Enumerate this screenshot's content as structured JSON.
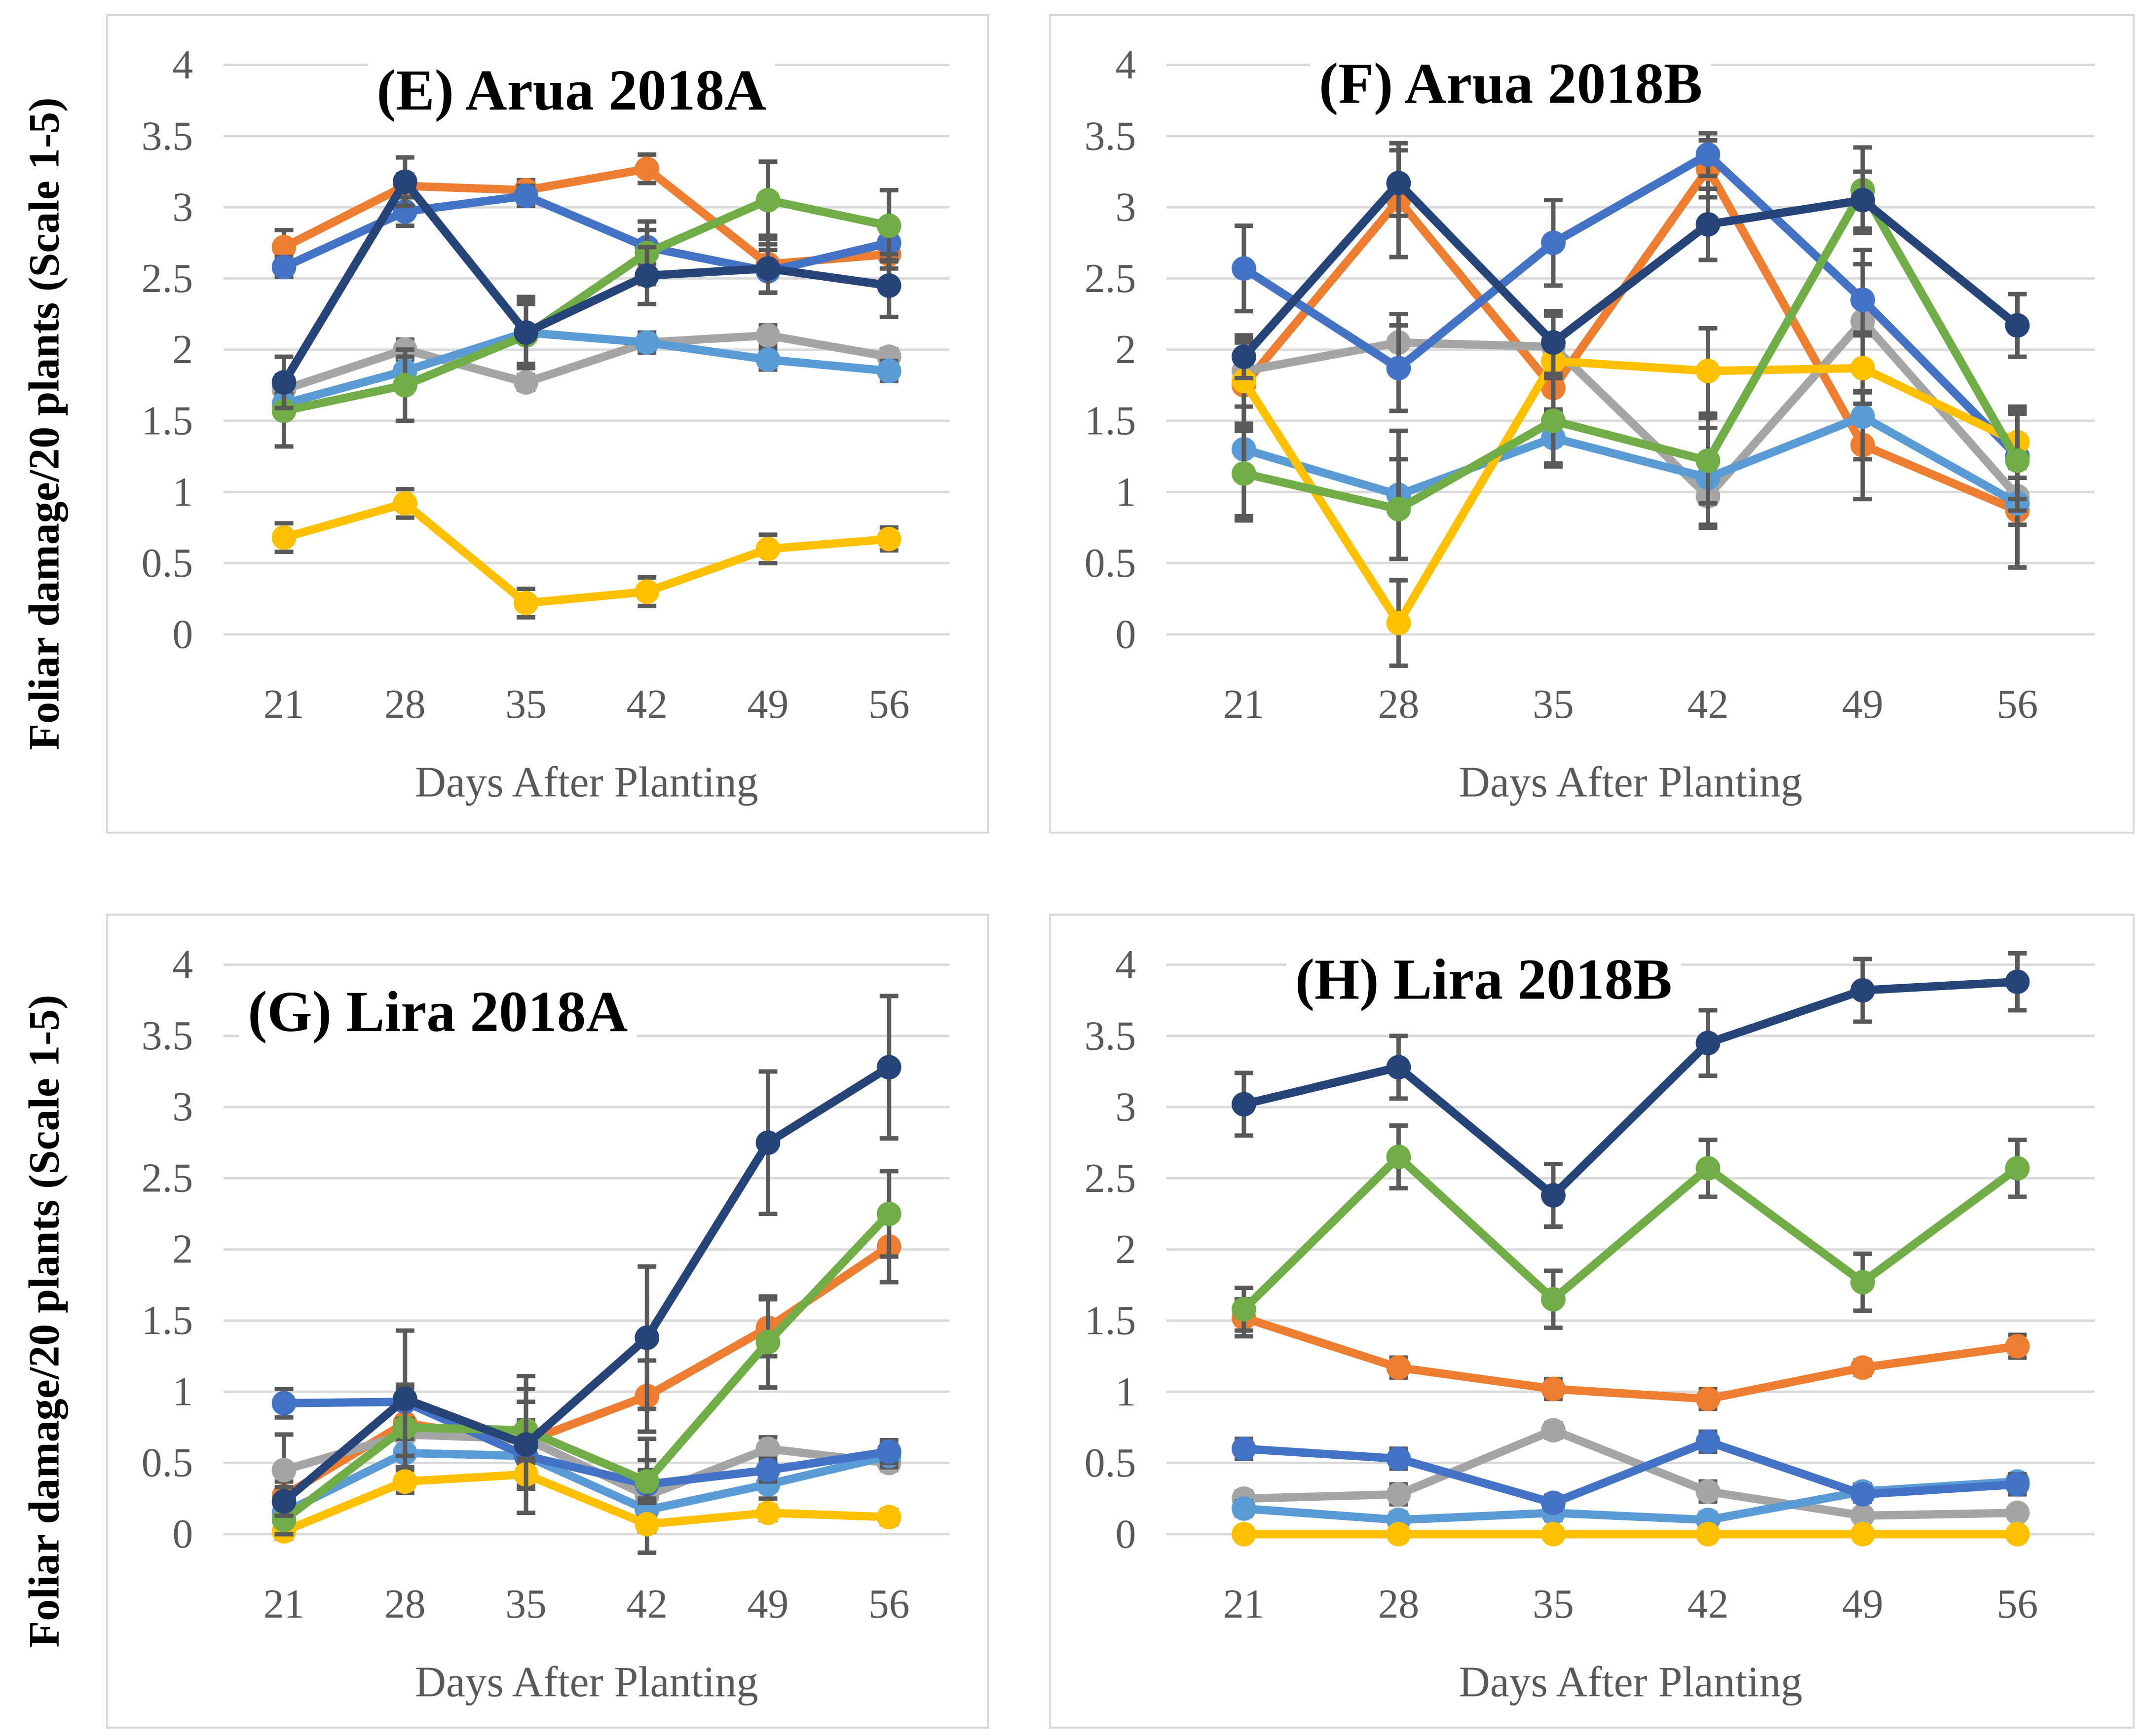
{
  "figure": {
    "y_axis_label": "Foliar damage/20 plants (Scale 1-5)",
    "x_axis_label": "Days After Planting",
    "grid_color": "#D9D9D9",
    "error_bar_color": "#595959",
    "tick_label_color": "#595959",
    "axis_title_color": "#595959",
    "title_color": "#000000"
  },
  "chart_data": [
    {
      "type": "line",
      "panel": "E",
      "title": "(E) Arua 2018A",
      "xlabel": "Days After Planting",
      "ylabel": "Foliar damage/20 plants (Scale 1-5)",
      "x": [
        21,
        28,
        35,
        42,
        49,
        56
      ],
      "ylim": [
        0,
        4
      ],
      "yticks": [
        0,
        0.5,
        1,
        1.5,
        2,
        2.5,
        3,
        3.5,
        4
      ],
      "grid": true,
      "legend": "none",
      "series": [
        {
          "name": "orange",
          "color": "#ED7D31",
          "values": [
            2.72,
            3.15,
            3.12,
            3.27,
            2.6,
            2.67
          ],
          "errors": [
            0.12,
            0.08,
            0.07,
            0.1,
            0.2,
            0.1
          ]
        },
        {
          "name": "gray",
          "color": "#A5A5A5",
          "values": [
            1.72,
            2.0,
            1.77,
            2.05,
            2.1,
            1.95
          ],
          "errors": [
            0.08,
            0.07,
            0.05,
            0.05,
            0.07,
            0.05
          ]
        },
        {
          "name": "light-blue",
          "color": "#5B9BD5",
          "values": [
            1.62,
            1.85,
            2.12,
            2.05,
            1.93,
            1.85
          ],
          "errors": [
            0.07,
            0.1,
            0.22,
            0.07,
            0.07,
            0.07
          ]
        },
        {
          "name": "royal-blue",
          "color": "#4472C4",
          "values": [
            2.58,
            2.97,
            3.08,
            2.72,
            2.55,
            2.75
          ],
          "errors": [
            0.07,
            0.1,
            0.07,
            0.12,
            0.15,
            0.12
          ]
        },
        {
          "name": "yellow",
          "color": "#FFC000",
          "values": [
            0.68,
            0.92,
            0.22,
            0.3,
            0.6,
            0.67
          ],
          "errors": [
            0.1,
            0.1,
            0.1,
            0.1,
            0.1,
            0.08
          ]
        },
        {
          "name": "green",
          "color": "#70AD47",
          "values": [
            1.57,
            1.75,
            2.1,
            2.68,
            3.05,
            2.87
          ],
          "errors": [
            0.25,
            0.25,
            0.22,
            0.22,
            0.27,
            0.25
          ]
        },
        {
          "name": "navy-blue",
          "color": "#264478",
          "values": [
            1.77,
            3.18,
            2.12,
            2.52,
            2.57,
            2.45
          ],
          "errors": [
            0.18,
            0.17,
            0.25,
            0.2,
            0.17,
            0.22
          ]
        }
      ]
    },
    {
      "type": "line",
      "panel": "F",
      "title": "(F) Arua 2018B",
      "xlabel": "Days After Planting",
      "ylabel": "Foliar damage/20 plants (Scale 1-5)",
      "x": [
        21,
        28,
        35,
        42,
        49,
        56
      ],
      "ylim": [
        0,
        4
      ],
      "yticks": [
        0,
        0.5,
        1,
        1.5,
        2,
        2.5,
        3,
        3.5,
        4
      ],
      "grid": true,
      "legend": "none",
      "series": [
        {
          "name": "orange",
          "color": "#ED7D31",
          "values": [
            1.75,
            3.05,
            1.73,
            3.27,
            1.33,
            0.87
          ],
          "errors": [
            0.3,
            0.4,
            0.25,
            0.2,
            0.38,
            0.4
          ]
        },
        {
          "name": "gray",
          "color": "#A5A5A5",
          "values": [
            1.85,
            2.05,
            2.02,
            0.97,
            2.2,
            0.97
          ],
          "errors": [
            0.25,
            0.2,
            0.22,
            0.2,
            0.5,
            0.2
          ]
        },
        {
          "name": "light-blue",
          "color": "#5B9BD5",
          "values": [
            1.3,
            0.98,
            1.38,
            1.1,
            1.53,
            0.92
          ],
          "errors": [
            0.5,
            0.45,
            0.2,
            0.35,
            0.3,
            0.45
          ]
        },
        {
          "name": "royal-blue",
          "color": "#4472C4",
          "values": [
            2.57,
            1.87,
            2.75,
            3.37,
            2.35,
            1.25
          ],
          "errors": [
            0.3,
            0.3,
            0.3,
            0.15,
            0.25,
            0.3
          ]
        },
        {
          "name": "yellow",
          "color": "#FFC000",
          "values": [
            1.78,
            0.08,
            1.92,
            1.85,
            1.87,
            1.35
          ],
          "errors": [
            0.3,
            0.3,
            0.35,
            0.3,
            0.25,
            0.25
          ]
        },
        {
          "name": "green",
          "color": "#70AD47",
          "values": [
            1.13,
            0.88,
            1.5,
            1.22,
            3.12,
            1.22
          ],
          "errors": [
            0.3,
            0.35,
            0.3,
            0.3,
            0.3,
            0.35
          ]
        },
        {
          "name": "navy-blue",
          "color": "#264478",
          "values": [
            1.95,
            3.17,
            2.05,
            2.88,
            3.05,
            2.17
          ],
          "errors": [
            0.15,
            0.23,
            0.22,
            0.25,
            0.2,
            0.22
          ]
        }
      ]
    },
    {
      "type": "line",
      "panel": "G",
      "title": "(G) Lira 2018A",
      "xlabel": "Days After Planting",
      "ylabel": "Foliar damage/20 plants (Scale 1-5)",
      "x": [
        21,
        28,
        35,
        42,
        49,
        56
      ],
      "ylim": [
        0,
        4
      ],
      "yticks": [
        0,
        0.5,
        1,
        1.5,
        2,
        2.5,
        3,
        3.5,
        4
      ],
      "grid": true,
      "legend": "none",
      "series": [
        {
          "name": "orange",
          "color": "#ED7D31",
          "values": [
            0.27,
            0.78,
            0.65,
            0.97,
            1.45,
            2.02
          ],
          "errors": [
            0.1,
            0.2,
            0.15,
            0.25,
            0.2,
            0.25
          ]
        },
        {
          "name": "gray",
          "color": "#A5A5A5",
          "values": [
            0.45,
            0.7,
            0.67,
            0.27,
            0.6,
            0.5
          ],
          "errors": [
            0.25,
            0.33,
            0.35,
            0.4,
            0.08,
            0.05
          ]
        },
        {
          "name": "light-blue",
          "color": "#5B9BD5",
          "values": [
            0.15,
            0.57,
            0.55,
            0.17,
            0.35,
            0.55
          ],
          "errors": [
            0.08,
            0.1,
            0.1,
            0.08,
            0.1,
            0.08
          ]
        },
        {
          "name": "royal-blue",
          "color": "#4472C4",
          "values": [
            0.92,
            0.93,
            0.55,
            0.35,
            0.45,
            0.58
          ],
          "errors": [
            0.1,
            0.12,
            0.1,
            0.1,
            0.08,
            0.08
          ]
        },
        {
          "name": "yellow",
          "color": "#FFC000",
          "values": [
            0.02,
            0.37,
            0.42,
            0.07,
            0.15,
            0.12
          ],
          "errors": [
            0.05,
            0.08,
            0.08,
            0.05,
            0.05,
            0.05
          ]
        },
        {
          "name": "green",
          "color": "#70AD47",
          "values": [
            0.1,
            0.75,
            0.73,
            0.37,
            1.35,
            2.25
          ],
          "errors": [
            0.1,
            0.2,
            0.2,
            0.15,
            0.32,
            0.3
          ]
        },
        {
          "name": "navy-blue",
          "color": "#264478",
          "values": [
            0.23,
            0.95,
            0.63,
            1.38,
            2.75,
            3.28
          ],
          "errors": [
            0.1,
            0.48,
            0.48,
            0.5,
            0.5,
            0.5
          ]
        }
      ]
    },
    {
      "type": "line",
      "panel": "H",
      "title": "(H) Lira 2018B",
      "xlabel": "Days After Planting",
      "ylabel": "Foliar damage/20 plants (Scale 1-5)",
      "x": [
        21,
        28,
        35,
        42,
        49,
        56
      ],
      "ylim": [
        0,
        4
      ],
      "yticks": [
        0,
        0.5,
        1,
        1.5,
        2,
        2.5,
        3,
        3.5,
        4
      ],
      "grid": true,
      "legend": "none",
      "series": [
        {
          "name": "orange",
          "color": "#ED7D31",
          "values": [
            1.52,
            1.17,
            1.02,
            0.95,
            1.17,
            1.32
          ],
          "errors": [
            0.13,
            0.07,
            0.07,
            0.07,
            0.05,
            0.08
          ]
        },
        {
          "name": "gray",
          "color": "#A5A5A5",
          "values": [
            0.25,
            0.28,
            0.73,
            0.3,
            0.13,
            0.15
          ],
          "errors": [
            0.05,
            0.07,
            0.05,
            0.07,
            0.04,
            0.04
          ]
        },
        {
          "name": "light-blue",
          "color": "#5B9BD5",
          "values": [
            0.18,
            0.1,
            0.15,
            0.1,
            0.3,
            0.37
          ],
          "errors": [
            0.05,
            0.05,
            0.05,
            0.05,
            0.05,
            0.05
          ]
        },
        {
          "name": "royal-blue",
          "color": "#4472C4",
          "values": [
            0.6,
            0.53,
            0.22,
            0.65,
            0.28,
            0.35
          ],
          "errors": [
            0.07,
            0.07,
            0.05,
            0.07,
            0.05,
            0.07
          ]
        },
        {
          "name": "yellow",
          "color": "#FFC000",
          "values": [
            0.0,
            0.0,
            0.0,
            0.0,
            0.0,
            0.0
          ],
          "errors": [
            0,
            0,
            0,
            0,
            0,
            0
          ]
        },
        {
          "name": "green",
          "color": "#70AD47",
          "values": [
            1.58,
            2.65,
            1.65,
            2.57,
            1.77,
            2.57
          ],
          "errors": [
            0.15,
            0.22,
            0.2,
            0.2,
            0.2,
            0.2
          ]
        },
        {
          "name": "navy-blue",
          "color": "#264478",
          "values": [
            3.02,
            3.28,
            2.38,
            3.45,
            3.82,
            3.88
          ],
          "errors": [
            0.22,
            0.22,
            0.22,
            0.23,
            0.22,
            0.2
          ]
        }
      ]
    }
  ]
}
